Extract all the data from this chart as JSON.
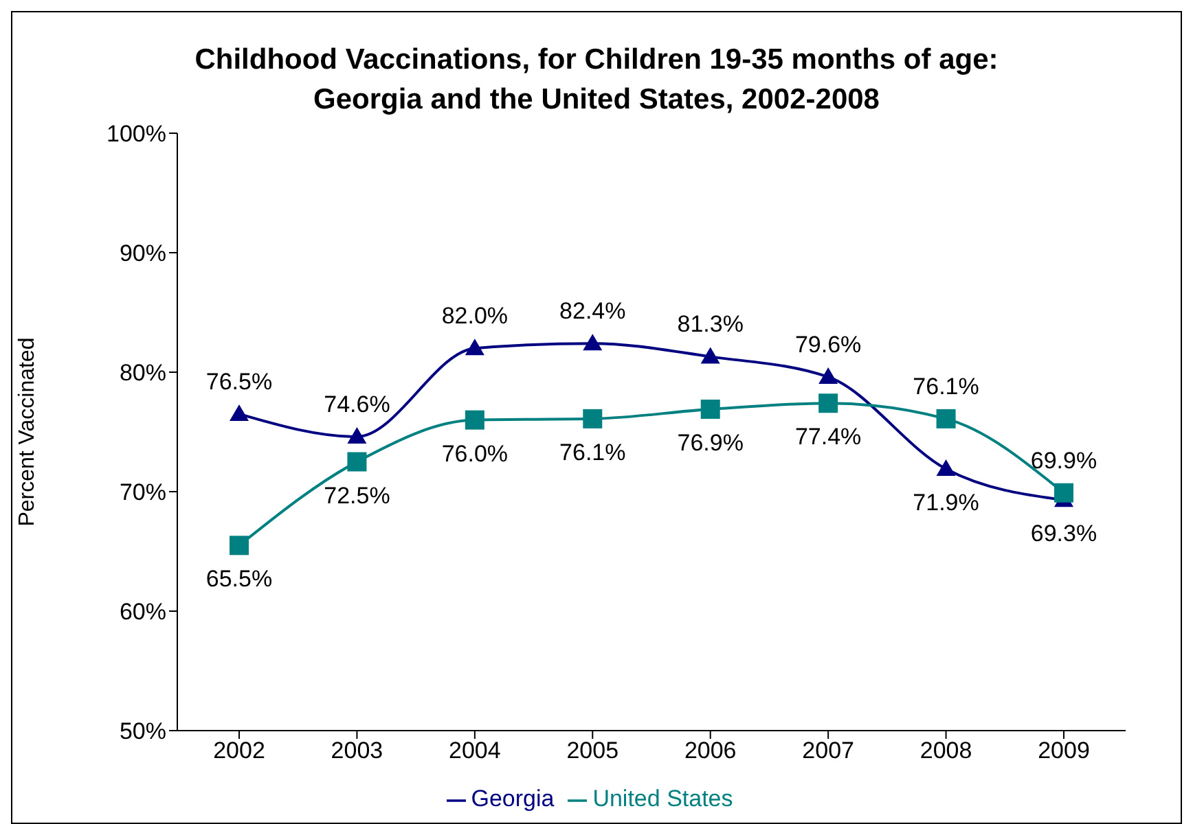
{
  "chart_data": {
    "type": "line",
    "title": "Childhood Vaccinations, for Children 19-35 months of age: Georgia and the United States, 2002-2008",
    "ylabel": "Percent Vaccinated",
    "categories": [
      "2002",
      "2003",
      "2004",
      "2005",
      "2006",
      "2007",
      "2008",
      "2009"
    ],
    "series": [
      {
        "name": "Georgia",
        "color": "#000080",
        "marker": "triangle",
        "values": [
          76.5,
          74.6,
          82.0,
          82.4,
          81.3,
          79.6,
          71.9,
          69.3
        ],
        "value_labels": [
          "76.5%",
          "74.6%",
          "82.0%",
          "82.4%",
          "81.3%",
          "79.6%",
          "71.9%",
          "69.3%"
        ]
      },
      {
        "name": "United States",
        "color": "#008080",
        "marker": "square",
        "values": [
          65.5,
          72.5,
          76.0,
          76.1,
          76.9,
          77.4,
          76.1,
          69.9
        ],
        "value_labels": [
          "65.5%",
          "72.5%",
          "76.0%",
          "76.1%",
          "76.9%",
          "77.4%",
          "76.1%",
          "69.9%"
        ]
      }
    ],
    "ylim": [
      50,
      100
    ],
    "yticks": [
      {
        "value": 50,
        "label": "50%"
      },
      {
        "value": 60,
        "label": "60%"
      },
      {
        "value": 70,
        "label": "70%"
      },
      {
        "value": 80,
        "label": "80%"
      },
      {
        "value": 90,
        "label": "90%"
      },
      {
        "value": 100,
        "label": "100%"
      }
    ],
    "legend": "bottom",
    "grid": false
  }
}
